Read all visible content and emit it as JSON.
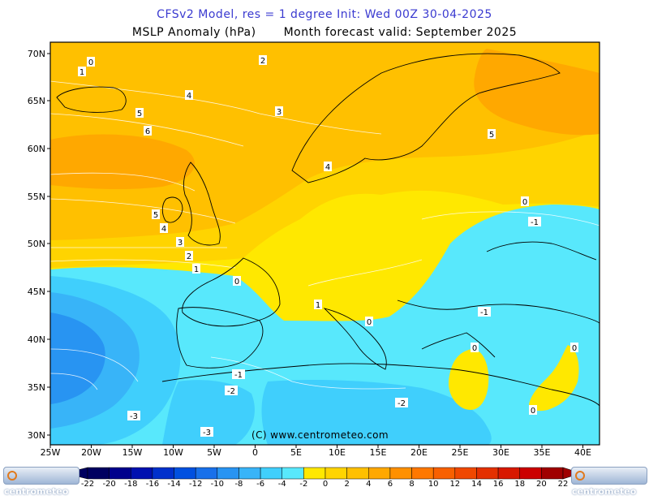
{
  "title_line1": "CFSv2 Model, res = 1 degree    Init: Wed 00Z 30-04-2025",
  "title_line2_left": "MSLP Anomaly (hPa)",
  "title_line2_right": "Month forecast valid: September 2025",
  "watermark": "(C) www.centrometeo.com",
  "logo_text": "centrometeo",
  "lat_labels": [
    "70N",
    "65N",
    "60N",
    "55N",
    "50N",
    "45N",
    "40N",
    "35N",
    "30N"
  ],
  "lon_labels": [
    "25W",
    "20W",
    "15W",
    "10W",
    "5W",
    "0",
    "5E",
    "10E",
    "15E",
    "20E",
    "25E",
    "30E",
    "35E",
    "40E"
  ],
  "colorbar": {
    "levels": [
      "-22",
      "-20",
      "-18",
      "-16",
      "-14",
      "-12",
      "-10",
      "-8",
      "-6",
      "-4",
      "-2",
      "0",
      "2",
      "4",
      "6",
      "8",
      "10",
      "12",
      "14",
      "16",
      "18",
      "20",
      "22"
    ],
    "colors": [
      "#000060",
      "#00008c",
      "#0010b0",
      "#0030cc",
      "#0050e0",
      "#1870ea",
      "#2894f2",
      "#38b4f8",
      "#40cffc",
      "#58e8fc",
      "#ffe800",
      "#ffd400",
      "#ffc000",
      "#ffa800",
      "#ff9000",
      "#ff7800",
      "#f86000",
      "#f04800",
      "#e43000",
      "#d81800",
      "#cc0000",
      "#a00000"
    ]
  },
  "contour_labels": [
    "0",
    "1",
    "2",
    "4",
    "3",
    "5",
    "6",
    "4",
    "5",
    "5",
    "4",
    "3",
    "2",
    "1",
    "0",
    "1",
    "0",
    "-1",
    "0",
    "-1",
    "-1",
    "-2",
    "-3",
    "-3",
    "-2",
    "0",
    "0",
    "0"
  ],
  "colors": {
    "title_blue": "#3a3ad0",
    "frame": "#000000"
  }
}
